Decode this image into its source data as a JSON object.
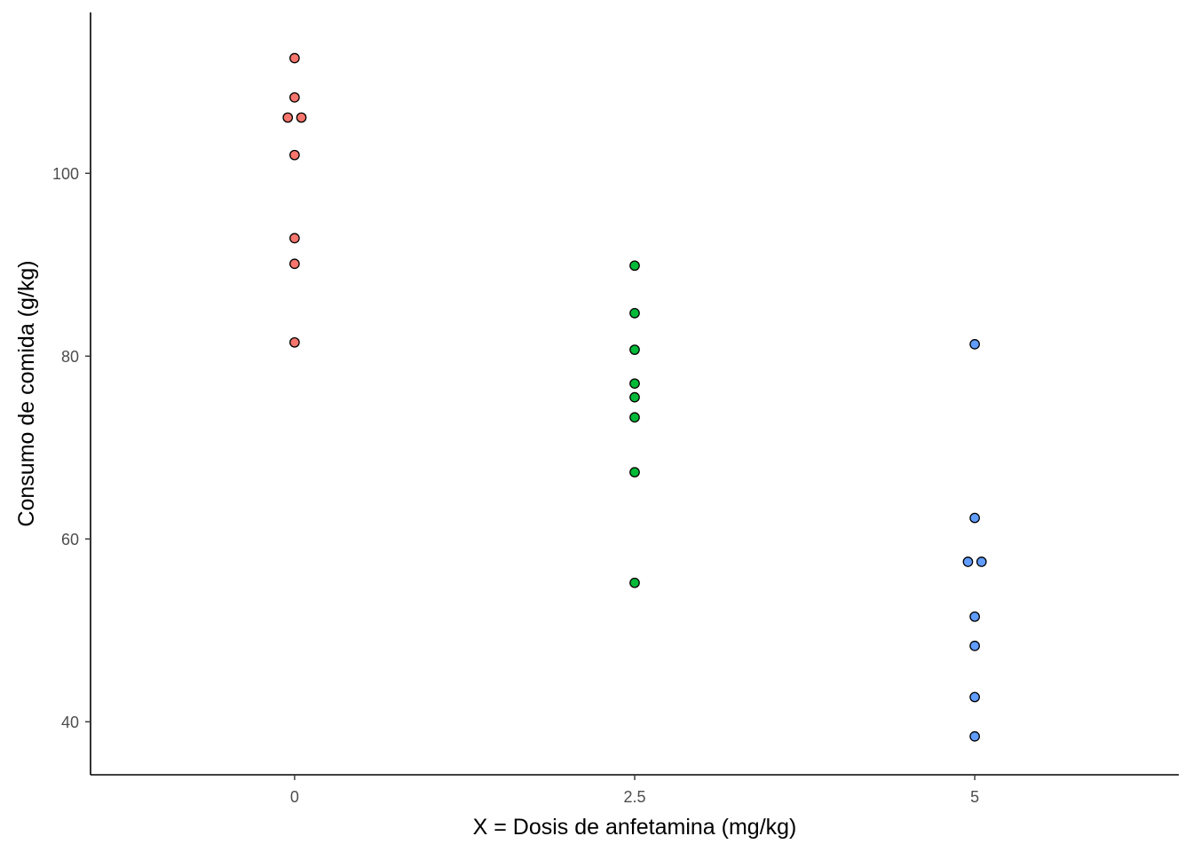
{
  "chart_data": {
    "type": "scatter",
    "title": "",
    "xlabel": "X = Dosis de anfetamina (mg/kg)",
    "ylabel": "Consumo de comida (g/kg)",
    "xlim": [
      -1.5,
      6.5
    ],
    "ylim": [
      34.2,
      117.6
    ],
    "x_ticks": [
      0,
      2.5,
      5
    ],
    "x_tick_labels": [
      "0",
      "2.5",
      "5"
    ],
    "y_ticks": [
      40,
      60,
      80,
      100
    ],
    "y_tick_labels": [
      "40",
      "60",
      "80",
      "100"
    ],
    "grid": false,
    "legend": "none",
    "series": [
      {
        "color": "#F8766D",
        "points": [
          {
            "x": 0,
            "y": 112.6
          },
          {
            "x": 0,
            "y": 108.3
          },
          {
            "x": -0.05,
            "y": 106.1
          },
          {
            "x": 0.05,
            "y": 106.1
          },
          {
            "x": 0,
            "y": 102.0
          },
          {
            "x": 0,
            "y": 92.9
          },
          {
            "x": 0,
            "y": 90.1
          },
          {
            "x": 0,
            "y": 81.5
          }
        ]
      },
      {
        "color": "#00BA38",
        "points": [
          {
            "x": 2.5,
            "y": 89.9
          },
          {
            "x": 2.5,
            "y": 84.7
          },
          {
            "x": 2.5,
            "y": 80.7
          },
          {
            "x": 2.5,
            "y": 77.0
          },
          {
            "x": 2.5,
            "y": 75.5
          },
          {
            "x": 2.5,
            "y": 73.3
          },
          {
            "x": 2.5,
            "y": 67.3
          },
          {
            "x": 2.5,
            "y": 55.2
          }
        ]
      },
      {
        "color": "#619CFF",
        "points": [
          {
            "x": 5,
            "y": 81.3
          },
          {
            "x": 5,
            "y": 62.3
          },
          {
            "x": 4.95,
            "y": 57.5
          },
          {
            "x": 5.05,
            "y": 57.5
          },
          {
            "x": 5,
            "y": 51.5
          },
          {
            "x": 5,
            "y": 48.3
          },
          {
            "x": 5,
            "y": 42.7
          },
          {
            "x": 5,
            "y": 38.4
          }
        ]
      }
    ]
  }
}
